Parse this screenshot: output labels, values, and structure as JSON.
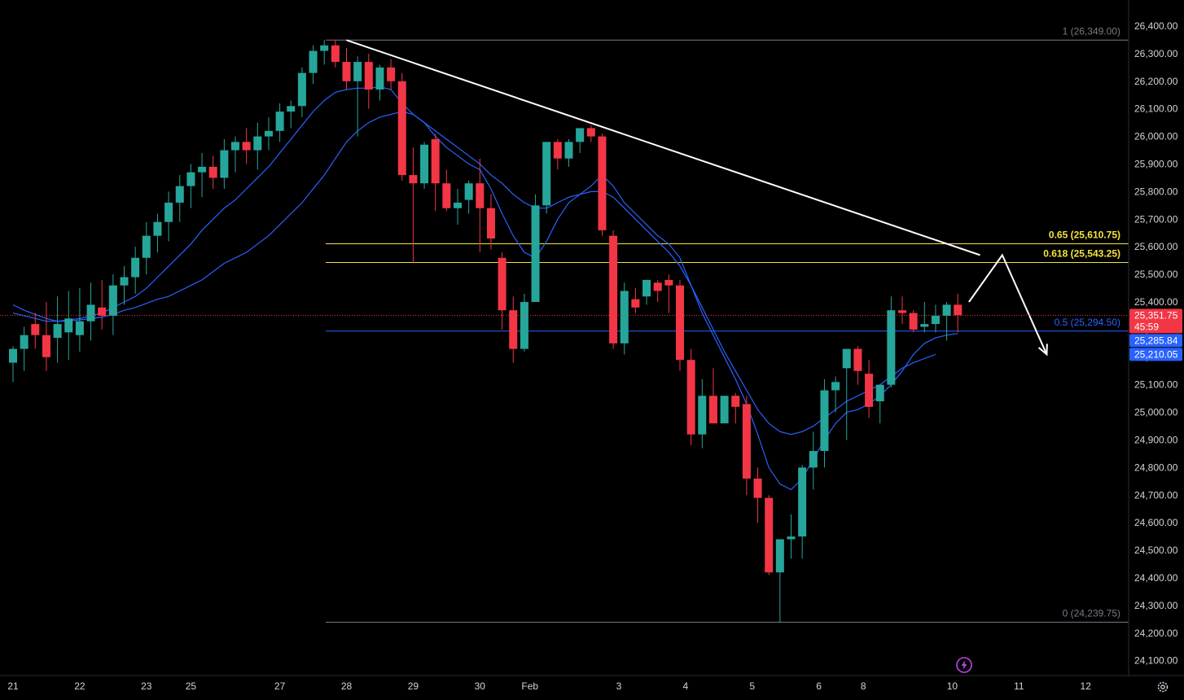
{
  "chart_data": {
    "type": "candlestick",
    "price_axis": {
      "min": 24050,
      "max": 26550,
      "labels": [
        "26,400.00",
        "26,300.00",
        "26,200.00",
        "26,100.00",
        "26,000.00",
        "25,900.00",
        "25,800.00",
        "25,700.00",
        "25,600.00",
        "25,500.00",
        "25,400.00",
        "25,300.00",
        "25,200.00",
        "25,100.00",
        "25,000.00",
        "24,900.00",
        "24,800.00",
        "24,700.00",
        "24,600.00",
        "24,500.00",
        "24,400.00",
        "24,300.00",
        "24,200.00",
        "24,100.00"
      ],
      "values": [
        26400,
        26300,
        26200,
        26100,
        26000,
        25900,
        25800,
        25700,
        25600,
        25500,
        25400,
        25300,
        25200,
        25100,
        25000,
        24900,
        24800,
        24700,
        24600,
        24500,
        24400,
        24300,
        24200,
        24100
      ]
    },
    "time_axis": {
      "labels": [
        "21",
        "22",
        "23",
        "25",
        "27",
        "28",
        "29",
        "30",
        "Feb",
        "3",
        "4",
        "5",
        "6",
        "8",
        "10",
        "11",
        "12"
      ],
      "bar_index": [
        0.0,
        6.0,
        12.0,
        16.0,
        24.0,
        30.0,
        36.0,
        42.0,
        46.5,
        54.5,
        60.5,
        66.5,
        72.5,
        76.5,
        84.5,
        90.5,
        96.5
      ]
    },
    "last_price": {
      "value": 25351.75,
      "label": "25,351.75",
      "countdown": "45:59",
      "color": "#f23645"
    },
    "ma_tags": [
      {
        "value": 25285.84,
        "label": "25,285.84",
        "color": "#2962ff"
      },
      {
        "value": 25210.05,
        "label": "25,210.05",
        "color": "#2962ff"
      }
    ],
    "fib_levels": [
      {
        "ratio_label": "1 (26,349.00)",
        "value": 26349.0,
        "color": "#787b86"
      },
      {
        "ratio_label": "0.65 (25,610.75)",
        "value": 25610.75,
        "color": "#f5e33e"
      },
      {
        "ratio_label": "0.618 (25,543.25)",
        "value": 25543.25,
        "color": "#f5e33e"
      },
      {
        "ratio_label": "0.5 (25,294.50)",
        "value": 25294.5,
        "color": "#2962ff"
      },
      {
        "ratio_label": "0 (24,239.75)",
        "value": 24239.75,
        "color": "#787b86"
      }
    ],
    "trendline": {
      "from": {
        "bar": 30.0,
        "price": 26349.0
      },
      "to": {
        "bar": 87.0,
        "price": 25570.0
      },
      "color": "#ffffff"
    },
    "projection": [
      {
        "bar": 86.0,
        "price": 25400.0
      },
      {
        "bar": 89.0,
        "price": 25570.0
      },
      {
        "bar": 93.0,
        "price": 25210.0
      }
    ],
    "candles": [
      {
        "o": 25180,
        "h": 25240,
        "l": 25110,
        "c": 25230
      },
      {
        "o": 25230,
        "h": 25310,
        "l": 25150,
        "c": 25280
      },
      {
        "o": 25320,
        "h": 25360,
        "l": 25230,
        "c": 25280
      },
      {
        "o": 25280,
        "h": 25400,
        "l": 25150,
        "c": 25200
      },
      {
        "o": 25270,
        "h": 25420,
        "l": 25180,
        "c": 25320
      },
      {
        "o": 25290,
        "h": 25440,
        "l": 25190,
        "c": 25340
      },
      {
        "o": 25280,
        "h": 25450,
        "l": 25220,
        "c": 25330
      },
      {
        "o": 25330,
        "h": 25470,
        "l": 25260,
        "c": 25390
      },
      {
        "o": 25380,
        "h": 25480,
        "l": 25300,
        "c": 25350
      },
      {
        "o": 25350,
        "h": 25500,
        "l": 25280,
        "c": 25460
      },
      {
        "o": 25460,
        "h": 25530,
        "l": 25390,
        "c": 25490
      },
      {
        "o": 25490,
        "h": 25600,
        "l": 25430,
        "c": 25560
      },
      {
        "o": 25560,
        "h": 25690,
        "l": 25500,
        "c": 25640
      },
      {
        "o": 25640,
        "h": 25720,
        "l": 25580,
        "c": 25690
      },
      {
        "o": 25690,
        "h": 25800,
        "l": 25620,
        "c": 25760
      },
      {
        "o": 25760,
        "h": 25860,
        "l": 25690,
        "c": 25820
      },
      {
        "o": 25820,
        "h": 25900,
        "l": 25740,
        "c": 25870
      },
      {
        "o": 25870,
        "h": 25940,
        "l": 25780,
        "c": 25890
      },
      {
        "o": 25890,
        "h": 25930,
        "l": 25810,
        "c": 25850
      },
      {
        "o": 25850,
        "h": 25990,
        "l": 25810,
        "c": 25950
      },
      {
        "o": 25950,
        "h": 26000,
        "l": 25870,
        "c": 25980
      },
      {
        "o": 25980,
        "h": 26030,
        "l": 25900,
        "c": 25950
      },
      {
        "o": 25950,
        "h": 26050,
        "l": 25880,
        "c": 26000
      },
      {
        "o": 26000,
        "h": 26070,
        "l": 25950,
        "c": 26020
      },
      {
        "o": 26020,
        "h": 26120,
        "l": 25980,
        "c": 26090
      },
      {
        "o": 26090,
        "h": 26130,
        "l": 26030,
        "c": 26110
      },
      {
        "o": 26110,
        "h": 26250,
        "l": 26070,
        "c": 26230
      },
      {
        "o": 26230,
        "h": 26330,
        "l": 26190,
        "c": 26310
      },
      {
        "o": 26310,
        "h": 26349,
        "l": 26260,
        "c": 26330
      },
      {
        "o": 26330,
        "h": 26350,
        "l": 26250,
        "c": 26270
      },
      {
        "o": 26270,
        "h": 26320,
        "l": 26170,
        "c": 26200
      },
      {
        "o": 26200,
        "h": 26290,
        "l": 26000,
        "c": 26270
      },
      {
        "o": 26270,
        "h": 26300,
        "l": 26100,
        "c": 26170
      },
      {
        "o": 26170,
        "h": 26260,
        "l": 26130,
        "c": 26250
      },
      {
        "o": 26250,
        "h": 26280,
        "l": 26170,
        "c": 26200
      },
      {
        "o": 26200,
        "h": 26230,
        "l": 25840,
        "c": 25860
      },
      {
        "o": 25860,
        "h": 25960,
        "l": 25540,
        "c": 25830
      },
      {
        "o": 25830,
        "h": 25980,
        "l": 25810,
        "c": 25970
      },
      {
        "o": 25990,
        "h": 26010,
        "l": 25730,
        "c": 25830
      },
      {
        "o": 25830,
        "h": 25880,
        "l": 25730,
        "c": 25740
      },
      {
        "o": 25740,
        "h": 25810,
        "l": 25680,
        "c": 25760
      },
      {
        "o": 25770,
        "h": 25840,
        "l": 25720,
        "c": 25830
      },
      {
        "o": 25830,
        "h": 25920,
        "l": 25580,
        "c": 25740
      },
      {
        "o": 25740,
        "h": 25790,
        "l": 25590,
        "c": 25630
      },
      {
        "o": 25560,
        "h": 25580,
        "l": 25300,
        "c": 25370
      },
      {
        "o": 25370,
        "h": 25420,
        "l": 25180,
        "c": 25230
      },
      {
        "o": 25230,
        "h": 25430,
        "l": 25220,
        "c": 25400
      },
      {
        "o": 25400,
        "h": 25790,
        "l": 25400,
        "c": 25750
      },
      {
        "o": 25750,
        "h": 25980,
        "l": 25720,
        "c": 25980
      },
      {
        "o": 25980,
        "h": 25990,
        "l": 25880,
        "c": 25920
      },
      {
        "o": 25920,
        "h": 25990,
        "l": 25890,
        "c": 25980
      },
      {
        "o": 25980,
        "h": 26020,
        "l": 25940,
        "c": 26030
      },
      {
        "o": 26030,
        "h": 26040,
        "l": 25980,
        "c": 26000
      },
      {
        "o": 26000,
        "h": 26010,
        "l": 25640,
        "c": 25660
      },
      {
        "o": 25640,
        "h": 25660,
        "l": 25230,
        "c": 25250
      },
      {
        "o": 25250,
        "h": 25470,
        "l": 25210,
        "c": 25440
      },
      {
        "o": 25410,
        "h": 25450,
        "l": 25360,
        "c": 25380
      },
      {
        "o": 25420,
        "h": 25480,
        "l": 25390,
        "c": 25480
      },
      {
        "o": 25470,
        "h": 25480,
        "l": 25400,
        "c": 25440
      },
      {
        "o": 25480,
        "h": 25500,
        "l": 25360,
        "c": 25460
      },
      {
        "o": 25460,
        "h": 25480,
        "l": 25150,
        "c": 25190
      },
      {
        "o": 25190,
        "h": 25230,
        "l": 24880,
        "c": 24920
      },
      {
        "o": 24920,
        "h": 25120,
        "l": 24870,
        "c": 25060
      },
      {
        "o": 25060,
        "h": 25160,
        "l": 24970,
        "c": 24960
      },
      {
        "o": 24960,
        "h": 25060,
        "l": 24980,
        "c": 25060
      },
      {
        "o": 25060,
        "h": 25070,
        "l": 24960,
        "c": 25020
      },
      {
        "o": 25030,
        "h": 25060,
        "l": 24700,
        "c": 24760
      },
      {
        "o": 24760,
        "h": 24800,
        "l": 24600,
        "c": 24690
      },
      {
        "o": 24690,
        "h": 24700,
        "l": 24410,
        "c": 24420
      },
      {
        "o": 24420,
        "h": 24530,
        "l": 24240,
        "c": 24540
      },
      {
        "o": 24540,
        "h": 24630,
        "l": 24470,
        "c": 24550
      },
      {
        "o": 24550,
        "h": 24810,
        "l": 24470,
        "c": 24800
      },
      {
        "o": 24800,
        "h": 24930,
        "l": 24720,
        "c": 24860
      },
      {
        "o": 24860,
        "h": 25120,
        "l": 24800,
        "c": 25080
      },
      {
        "o": 25080,
        "h": 25130,
        "l": 25000,
        "c": 25110
      },
      {
        "o": 25160,
        "h": 25220,
        "l": 24900,
        "c": 25230
      },
      {
        "o": 25230,
        "h": 25240,
        "l": 25100,
        "c": 25150
      },
      {
        "o": 25140,
        "h": 25190,
        "l": 24980,
        "c": 25020
      },
      {
        "o": 25040,
        "h": 25100,
        "l": 24960,
        "c": 25100
      },
      {
        "o": 25100,
        "h": 25420,
        "l": 25090,
        "c": 25370
      },
      {
        "o": 25370,
        "h": 25420,
        "l": 25320,
        "c": 25360
      },
      {
        "o": 25360,
        "h": 25370,
        "l": 25290,
        "c": 25300
      },
      {
        "o": 25310,
        "h": 25400,
        "l": 25290,
        "c": 25320
      },
      {
        "o": 25320,
        "h": 25390,
        "l": 25290,
        "c": 25350
      },
      {
        "o": 25350,
        "h": 25400,
        "l": 25260,
        "c": 25390
      },
      {
        "o": 25390,
        "h": 25430,
        "l": 25290,
        "c": 25351.75
      }
    ],
    "ma_fast": [
      25360,
      25350,
      25340,
      25330,
      25330,
      25335,
      25340,
      25350,
      25360,
      25380,
      25400,
      25420,
      25450,
      25490,
      25530,
      25570,
      25610,
      25660,
      25700,
      25740,
      25770,
      25810,
      25850,
      25890,
      25940,
      25990,
      26040,
      26090,
      26130,
      26160,
      26170,
      26175,
      26175,
      26180,
      26170,
      26120,
      26080,
      26050,
      26000,
      25960,
      25930,
      25900,
      25880,
      25810,
      25720,
      25640,
      25580,
      25560,
      25620,
      25700,
      25760,
      25790,
      25820,
      25860,
      25820,
      25760,
      25720,
      25680,
      25640,
      25610,
      25560,
      25460,
      25360,
      25280,
      25200,
      25120,
      25030,
      24920,
      24800,
      24740,
      24720,
      24760,
      24830,
      24900,
      24960,
      25000,
      25010,
      25030,
      25060,
      25100,
      25150,
      25210,
      25250,
      25270,
      25280,
      25285.84
    ],
    "ma_slow": [
      25390,
      25370,
      25355,
      25340,
      25330,
      25330,
      25335,
      25340,
      25345,
      25355,
      25370,
      25380,
      25395,
      25410,
      25420,
      25440,
      25460,
      25480,
      25510,
      25540,
      25560,
      25580,
      25610,
      25640,
      25680,
      25720,
      25760,
      25810,
      25860,
      25920,
      25980,
      26020,
      26050,
      26070,
      26080,
      26090,
      26080,
      26050,
      26020,
      25990,
      25960,
      25930,
      25900,
      25860,
      25830,
      25790,
      25760,
      25740,
      25740,
      25760,
      25780,
      25790,
      25800,
      25800,
      25780,
      25740,
      25700,
      25660,
      25620,
      25580,
      25530,
      25460,
      25380,
      25300,
      25220,
      25150,
      25080,
      25010,
      24960,
      24930,
      24920,
      24930,
      24950,
      24980,
      25010,
      25040,
      25060,
      25080,
      25100,
      25130,
      25160,
      25180,
      25195,
      25210.05
    ]
  },
  "colors": {
    "up": "#26a69a",
    "down": "#f23645",
    "ma": "#2962ff",
    "background": "#000000",
    "axis_text": "#d1d4dc"
  },
  "icons": {
    "settings": "gear-icon",
    "alert": "lightning-bolt-icon"
  }
}
